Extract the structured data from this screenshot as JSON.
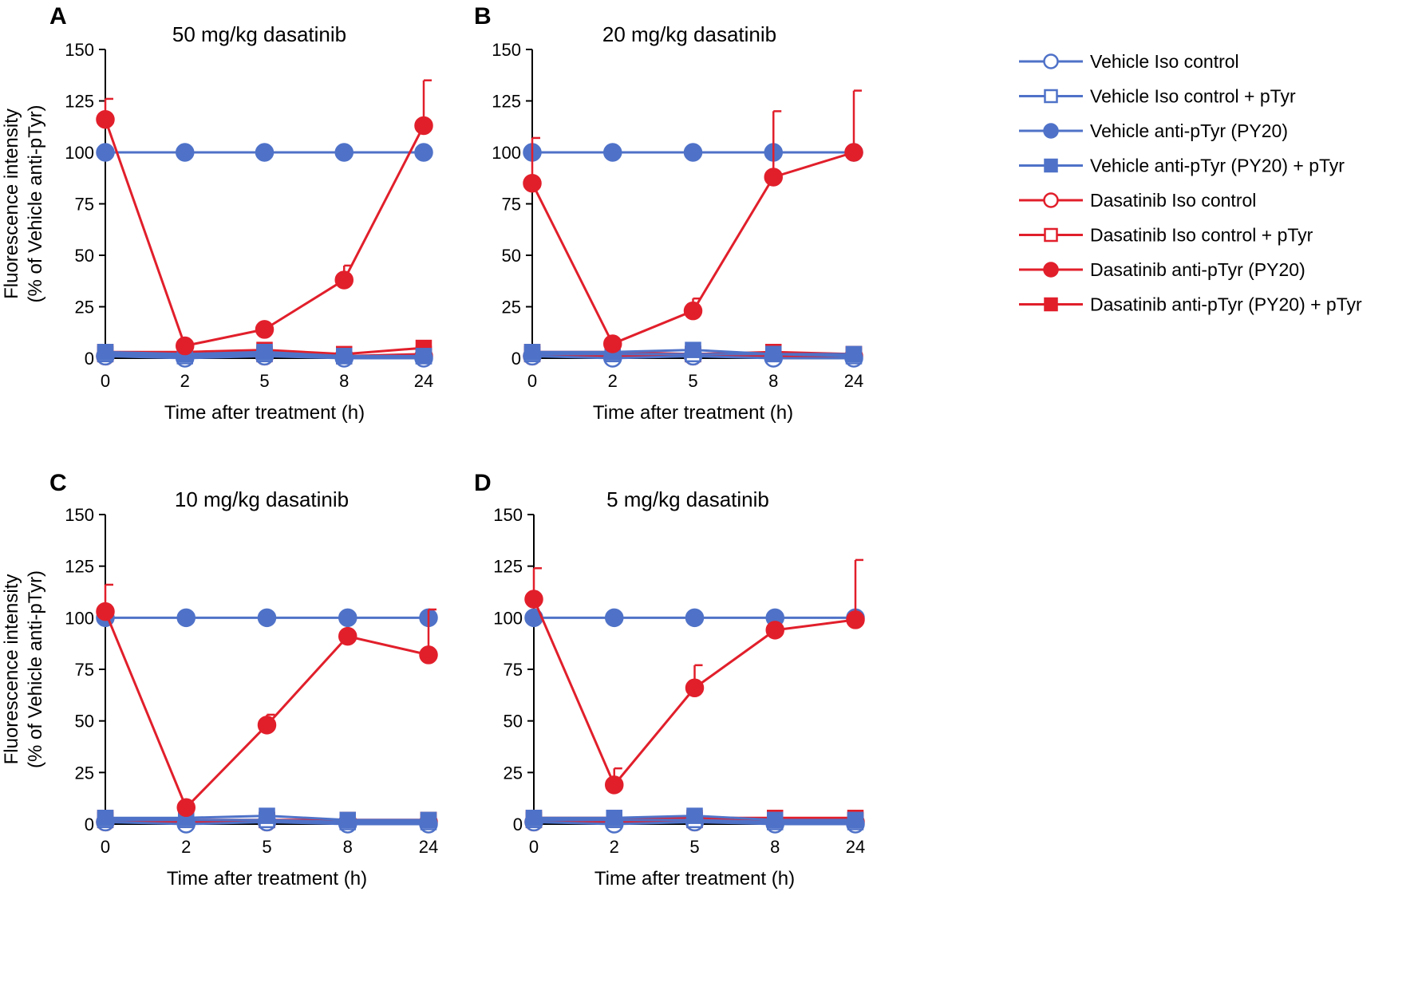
{
  "figure_description": "Four-panel line chart of fluorescence intensity over time after dasatinib treatment",
  "colors": {
    "vehicle": "#4f72c8",
    "dasatinib": "#e11f2b"
  },
  "legend": {
    "items": [
      {
        "label": "Vehicle Iso control",
        "group": "vehicle",
        "marker": "circle",
        "filled": false
      },
      {
        "label": "Vehicle Iso control + pTyr",
        "group": "vehicle",
        "marker": "square",
        "filled": false
      },
      {
        "label": "Vehicle anti-pTyr (PY20)",
        "group": "vehicle",
        "marker": "circle",
        "filled": true
      },
      {
        "label": "Vehicle anti-pTyr (PY20) + pTyr",
        "group": "vehicle",
        "marker": "square",
        "filled": true
      },
      {
        "label": "Dasatinib Iso control",
        "group": "dasatinib",
        "marker": "circle",
        "filled": false
      },
      {
        "label": "Dasatinib Iso control + pTyr",
        "group": "dasatinib",
        "marker": "square",
        "filled": false
      },
      {
        "label": "Dasatinib anti-pTyr (PY20)",
        "group": "dasatinib",
        "marker": "circle",
        "filled": true
      },
      {
        "label": "Dasatinib anti-pTyr (PY20) + pTyr",
        "group": "dasatinib",
        "marker": "square",
        "filled": true
      }
    ]
  },
  "chart_data": [
    {
      "panel": "A",
      "type": "line",
      "title": "50 mg/kg dasatinib",
      "xlabel": "Time after treatment (h)",
      "ylabel": [
        "Fluorescence intensity",
        "(% of Vehicle anti-pTyr)"
      ],
      "categories": [
        "0",
        "2",
        "5",
        "8",
        "24"
      ],
      "ylim": [
        0,
        150
      ],
      "yticks": [
        0,
        25,
        50,
        75,
        100,
        125,
        150
      ],
      "series": [
        {
          "name": "Vehicle Iso control",
          "values": [
            1,
            0,
            1,
            0,
            0
          ]
        },
        {
          "name": "Vehicle Iso control + pTyr",
          "values": [
            2,
            1,
            2,
            1,
            1
          ]
        },
        {
          "name": "Vehicle anti-pTyr (PY20)",
          "values": [
            100,
            100,
            100,
            100,
            100
          ]
        },
        {
          "name": "Vehicle anti-pTyr (PY20) + pTyr",
          "values": [
            3,
            2,
            3,
            1,
            1
          ]
        },
        {
          "name": "Dasatinib Iso control",
          "values": [
            1,
            1,
            1,
            1,
            1
          ]
        },
        {
          "name": "Dasatinib Iso control + pTyr",
          "values": [
            2,
            2,
            2,
            1,
            2
          ]
        },
        {
          "name": "Dasatinib anti-pTyr (PY20)",
          "values": [
            116,
            6,
            14,
            38,
            113
          ],
          "errors": [
            10,
            0,
            0,
            7,
            22
          ]
        },
        {
          "name": "Dasatinib anti-pTyr (PY20) + pTyr",
          "values": [
            3,
            3,
            4,
            2,
            5
          ]
        }
      ]
    },
    {
      "panel": "B",
      "type": "line",
      "title": "20 mg/kg dasatinib",
      "xlabel": "Time after treatment (h)",
      "ylabel": [],
      "categories": [
        "0",
        "2",
        "5",
        "8",
        "24"
      ],
      "ylim": [
        0,
        150
      ],
      "yticks": [
        0,
        25,
        50,
        75,
        100,
        125,
        150
      ],
      "series": [
        {
          "name": "Vehicle Iso control",
          "values": [
            1,
            0,
            1,
            0,
            0
          ]
        },
        {
          "name": "Vehicle Iso control + pTyr",
          "values": [
            2,
            2,
            2,
            2,
            1
          ]
        },
        {
          "name": "Vehicle anti-pTyr (PY20)",
          "values": [
            100,
            100,
            100,
            100,
            100
          ]
        },
        {
          "name": "Vehicle anti-pTyr (PY20) + pTyr",
          "values": [
            3,
            3,
            4,
            2,
            2
          ]
        },
        {
          "name": "Dasatinib Iso control",
          "values": [
            1,
            1,
            1,
            1,
            1
          ]
        },
        {
          "name": "Dasatinib Iso control + pTyr",
          "values": [
            2,
            2,
            2,
            2,
            2
          ]
        },
        {
          "name": "Dasatinib anti-pTyr (PY20)",
          "values": [
            85,
            7,
            23,
            88,
            100
          ],
          "errors": [
            22,
            0,
            6,
            32,
            30
          ]
        },
        {
          "name": "Dasatinib anti-pTyr (PY20) + pTyr",
          "values": [
            3,
            3,
            2,
            3,
            2
          ]
        }
      ]
    },
    {
      "panel": "C",
      "type": "line",
      "title": "10 mg/kg dasatinib",
      "xlabel": "Time after treatment (h)",
      "ylabel": [
        "Fluorescence intensity",
        "(% of Vehicle anti-pTyr)"
      ],
      "categories": [
        "0",
        "2",
        "5",
        "8",
        "24"
      ],
      "ylim": [
        0,
        150
      ],
      "yticks": [
        0,
        25,
        50,
        75,
        100,
        125,
        150
      ],
      "series": [
        {
          "name": "Vehicle Iso control",
          "values": [
            1,
            0,
            1,
            0,
            0
          ]
        },
        {
          "name": "Vehicle Iso control + pTyr",
          "values": [
            2,
            2,
            2,
            1,
            1
          ]
        },
        {
          "name": "Vehicle anti-pTyr (PY20)",
          "values": [
            100,
            100,
            100,
            100,
            100
          ]
        },
        {
          "name": "Vehicle anti-pTyr (PY20) + pTyr",
          "values": [
            3,
            3,
            4,
            2,
            2
          ]
        },
        {
          "name": "Dasatinib Iso control",
          "values": [
            1,
            1,
            1,
            1,
            1
          ]
        },
        {
          "name": "Dasatinib Iso control + pTyr",
          "values": [
            2,
            2,
            2,
            2,
            2
          ]
        },
        {
          "name": "Dasatinib anti-pTyr (PY20)",
          "values": [
            103,
            8,
            48,
            91,
            82
          ],
          "errors": [
            13,
            0,
            5,
            0,
            22
          ]
        },
        {
          "name": "Dasatinib anti-pTyr (PY20) + pTyr",
          "values": [
            3,
            2,
            2,
            2,
            2
          ]
        }
      ]
    },
    {
      "panel": "D",
      "type": "line",
      "title": "5 mg/kg dasatinib",
      "xlabel": "Time after treatment (h)",
      "ylabel": [],
      "categories": [
        "0",
        "2",
        "5",
        "8",
        "24"
      ],
      "ylim": [
        0,
        150
      ],
      "yticks": [
        0,
        25,
        50,
        75,
        100,
        125,
        150
      ],
      "series": [
        {
          "name": "Vehicle Iso control",
          "values": [
            1,
            0,
            1,
            0,
            0
          ]
        },
        {
          "name": "Vehicle Iso control + pTyr",
          "values": [
            2,
            2,
            2,
            1,
            1
          ]
        },
        {
          "name": "Vehicle anti-pTyr (PY20)",
          "values": [
            100,
            100,
            100,
            100,
            100
          ]
        },
        {
          "name": "Vehicle anti-pTyr (PY20) + pTyr",
          "values": [
            3,
            3,
            4,
            2,
            2
          ]
        },
        {
          "name": "Dasatinib Iso control",
          "values": [
            1,
            1,
            1,
            1,
            1
          ]
        },
        {
          "name": "Dasatinib Iso control + pTyr",
          "values": [
            2,
            2,
            2,
            2,
            2
          ]
        },
        {
          "name": "Dasatinib anti-pTyr (PY20)",
          "values": [
            109,
            19,
            66,
            94,
            99
          ],
          "errors": [
            15,
            8,
            11,
            0,
            29
          ]
        },
        {
          "name": "Dasatinib anti-pTyr (PY20) + pTyr",
          "values": [
            3,
            3,
            3,
            3,
            3
          ]
        }
      ]
    }
  ]
}
